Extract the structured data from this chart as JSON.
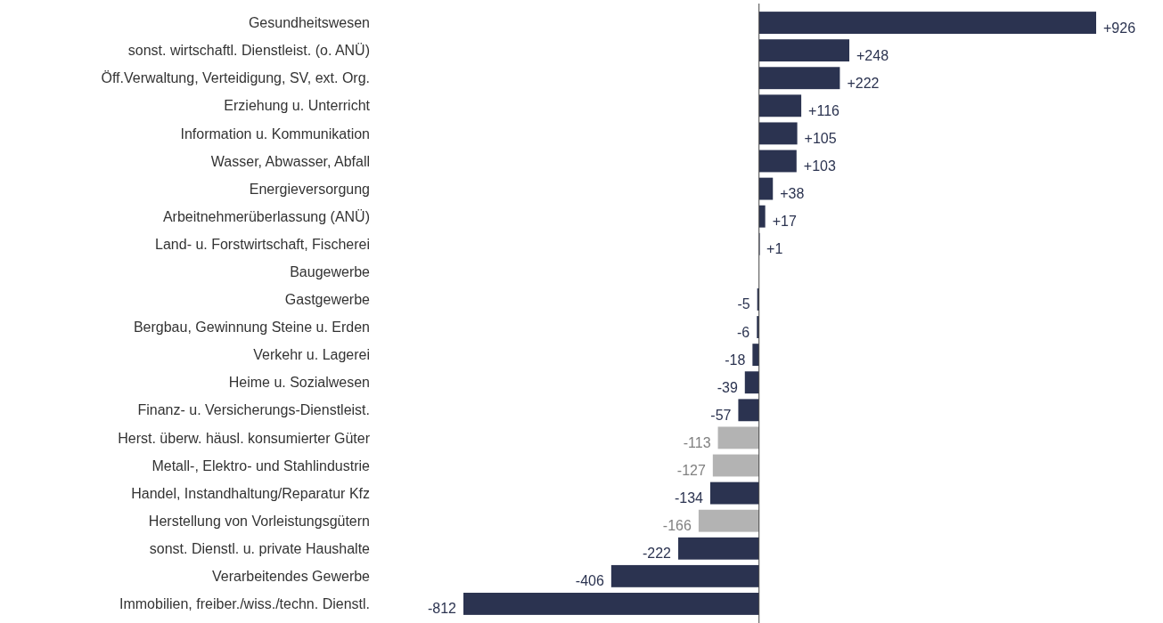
{
  "chart_data": {
    "type": "bar",
    "orientation": "horizontal",
    "categories": [
      "Gesundheitswesen",
      "sonst. wirtschaftl. Dienstleist. (o. ANÜ)",
      "Öff.Verwaltung, Verteidigung, SV, ext. Org.",
      "Erziehung u. Unterricht",
      "Information u. Kommunikation",
      "Wasser, Abwasser, Abfall",
      "Energieversorgung",
      "Arbeitnehmerüberlassung (ANÜ)",
      "Land- u. Forstwirtschaft, Fischerei",
      "Baugewerbe",
      "Gastgewerbe",
      "Bergbau, Gewinnung Steine u. Erden",
      "Verkehr u. Lagerei",
      "Heime u. Sozialwesen",
      "Finanz- u. Versicherungs-Dienstleist.",
      "Herst. überw. häusl. konsumierter Güter",
      "Metall-, Elektro- und Stahlindustrie",
      "Handel, Instandhaltung/Reparatur Kfz",
      "Herstellung von Vorleistungsgütern",
      "sonst. Dienstl. u. private Haushalte",
      "Verarbeitendes Gewerbe",
      "Immobilien, freiber./wiss./techn. Dienstl."
    ],
    "values": [
      926,
      248,
      222,
      116,
      105,
      103,
      38,
      17,
      1,
      null,
      -5,
      -6,
      -18,
      -39,
      -57,
      -113,
      -127,
      -134,
      -166,
      -222,
      -406,
      -812
    ],
    "value_labels": [
      "+926",
      "+248",
      "+222",
      "+116",
      "+105",
      "+103",
      "+38",
      "+17",
      "+1",
      null,
      "-5",
      "-6",
      "-18",
      "-39",
      "-57",
      "-113",
      "-127",
      "-134",
      "-166",
      "-222",
      "-406",
      "-812"
    ],
    "colors": [
      "#2b3350",
      "#2b3350",
      "#2b3350",
      "#2b3350",
      "#2b3350",
      "#2b3350",
      "#2b3350",
      "#2b3350",
      "#2b3350",
      null,
      "#2b3350",
      "#2b3350",
      "#2b3350",
      "#2b3350",
      "#2b3350",
      "#b3b3b3",
      "#b3b3b3",
      "#2b3350",
      "#b3b3b3",
      "#2b3350",
      "#2b3350",
      "#2b3350"
    ]
  }
}
